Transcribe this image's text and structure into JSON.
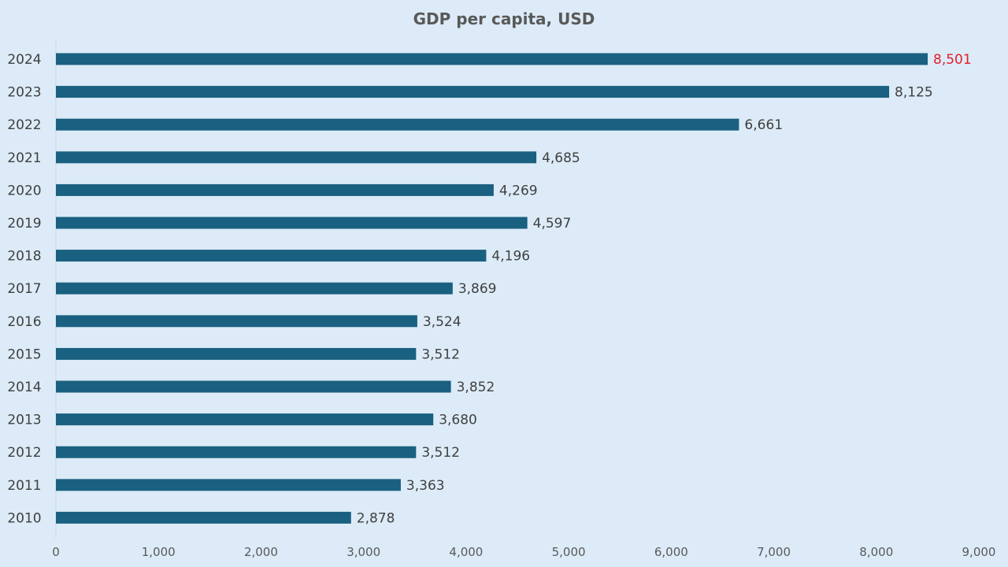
{
  "chart_data": {
    "type": "bar",
    "orientation": "horizontal",
    "title": "GDP per capita, USD",
    "xlabel": "",
    "ylabel": "",
    "categories": [
      "2024",
      "2023",
      "2022",
      "2021",
      "2020",
      "2019",
      "2018",
      "2017",
      "2016",
      "2015",
      "2014",
      "2013",
      "2012",
      "2011",
      "2010"
    ],
    "values": [
      8501,
      8125,
      6661,
      4685,
      4269,
      4597,
      4196,
      3869,
      3524,
      3512,
      3852,
      3680,
      3512,
      3363,
      2878
    ],
    "value_labels": [
      "8,501",
      "8,125",
      "6,661",
      "4,685",
      "4,269",
      "4,597",
      "4,196",
      "3,869",
      "3,524",
      "3,512",
      "3,852",
      "3,680",
      "3,512",
      "3,363",
      "2,878"
    ],
    "highlight_index": 0,
    "xlim": [
      0,
      9000
    ],
    "x_ticks": [
      0,
      1000,
      2000,
      3000,
      4000,
      5000,
      6000,
      7000,
      8000,
      9000
    ],
    "x_tick_labels": [
      "0",
      "1,000",
      "2,000",
      "3,000",
      "4,000",
      "5,000",
      "6,000",
      "7,000",
      "8,000",
      "9,000"
    ],
    "grid": false,
    "legend": "none",
    "colors": {
      "bar": "#1a6080",
      "highlight_label": "#e0202a",
      "label": "#404040",
      "background": "#dcebf7"
    }
  }
}
